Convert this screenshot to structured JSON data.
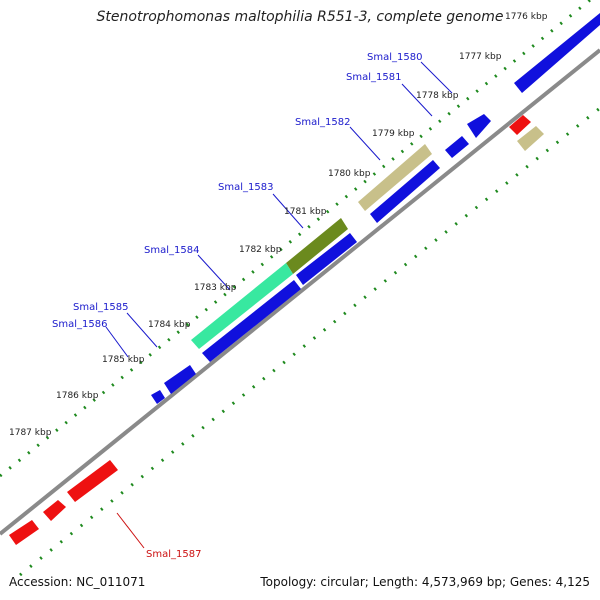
{
  "title": "Stenotrophomonas maltophilia R551-3, complete genome",
  "footer": {
    "accession": "Accession: NC_011071",
    "summary": "Topology: circular; Length: 4,573,969 bp; Genes: 4,125"
  },
  "colors": {
    "backbone": "#8a8a8a",
    "tick_dots": "#1f8a1f",
    "forward_cds": "#1010dd",
    "reverse_cds": "#ee1111",
    "highlight_green": "#38e8a0",
    "highlight_olive": "#6b8a1e",
    "highlight_tan": "#c8c08a",
    "label_forward": "#1a1acc",
    "label_reverse": "#cc1111"
  },
  "ruler": [
    "1776 kbp",
    "1777 kbp",
    "1778 kbp",
    "1779 kbp",
    "1780 kbp",
    "1781 kbp",
    "1782 kbp",
    "1783 kbp",
    "1784 kbp",
    "1785 kbp",
    "1786 kbp",
    "1787 kbp"
  ],
  "gene_labels": [
    "Smal_1580",
    "Smal_1581",
    "Smal_1582",
    "Smal_1583",
    "Smal_1584",
    "Smal_1585",
    "Smal_1586",
    "Smal_1587"
  ]
}
